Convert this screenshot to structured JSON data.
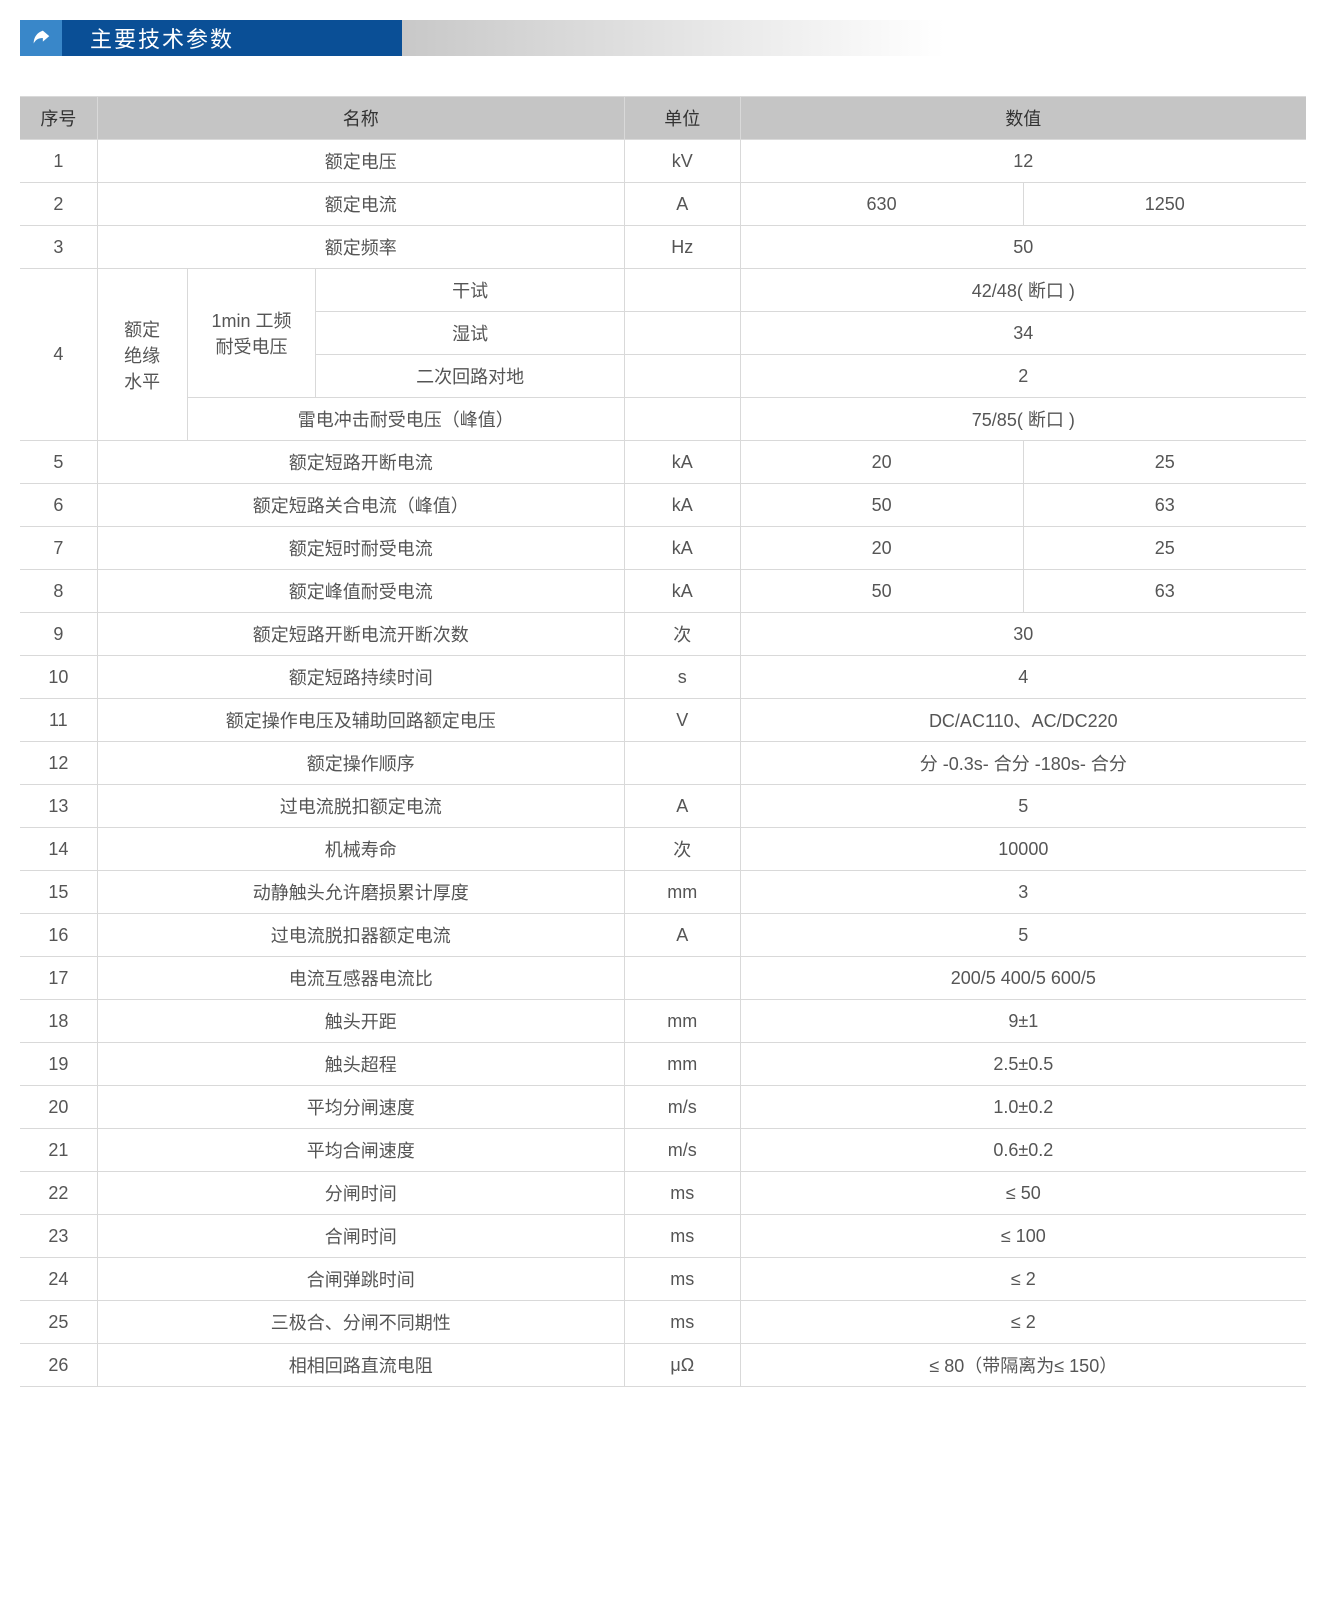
{
  "title": "主要技术参数",
  "colors": {
    "header_icon_bg": "#3987c9",
    "header_title_bg": "#0a4f96",
    "header_title_fg": "#ffffff",
    "table_header_bg": "#c5c5c5",
    "border": "#d9d9d9",
    "text": "#555555"
  },
  "columns": {
    "idx": "序号",
    "name": "名称",
    "unit": "单位",
    "value": "数值"
  },
  "row4": {
    "idx": "4",
    "group": "额定\n绝缘\n水平",
    "sub1": "1min 工频\n耐受电压",
    "r1": {
      "name": "干试",
      "unit": "",
      "value": "42/48( 断口 )"
    },
    "r2": {
      "name": "湿试",
      "unit": "",
      "value": "34"
    },
    "r3": {
      "name": "二次回路对地",
      "unit": "",
      "value": "2"
    },
    "r4": {
      "name": "雷电冲击耐受电压（峰值）",
      "unit": "",
      "value": "75/85( 断口 )"
    }
  },
  "rows": [
    {
      "idx": "1",
      "name": "额定电压",
      "unit": "kV",
      "values": [
        "12"
      ]
    },
    {
      "idx": "2",
      "name": "额定电流",
      "unit": "A",
      "values": [
        "630",
        "1250"
      ]
    },
    {
      "idx": "3",
      "name": "额定频率",
      "unit": "Hz",
      "values": [
        "50"
      ]
    },
    {
      "idx": "5",
      "name": "额定短路开断电流",
      "unit": "kA",
      "values": [
        "20",
        "25"
      ]
    },
    {
      "idx": "6",
      "name": "额定短路关合电流（峰值）",
      "unit": "kA",
      "values": [
        "50",
        "63"
      ]
    },
    {
      "idx": "7",
      "name": "额定短时耐受电流",
      "unit": "kA",
      "values": [
        "20",
        "25"
      ]
    },
    {
      "idx": "8",
      "name": "额定峰值耐受电流",
      "unit": "kA",
      "values": [
        "50",
        "63"
      ]
    },
    {
      "idx": "9",
      "name": "额定短路开断电流开断次数",
      "unit": "次",
      "values": [
        "30"
      ]
    },
    {
      "idx": "10",
      "name": "额定短路持续时间",
      "unit": "s",
      "values": [
        "4"
      ]
    },
    {
      "idx": "11",
      "name": "额定操作电压及辅助回路额定电压",
      "unit": "V",
      "values": [
        "DC/AC110、AC/DC220"
      ]
    },
    {
      "idx": "12",
      "name": "额定操作顺序",
      "unit": "",
      "values": [
        "分 -0.3s- 合分 -180s- 合分"
      ]
    },
    {
      "idx": "13",
      "name": "过电流脱扣额定电流",
      "unit": "A",
      "values": [
        "5"
      ]
    },
    {
      "idx": "14",
      "name": "机械寿命",
      "unit": "次",
      "values": [
        "10000"
      ]
    },
    {
      "idx": "15",
      "name": "动静触头允许磨损累计厚度",
      "unit": "mm",
      "values": [
        "3"
      ]
    },
    {
      "idx": "16",
      "name": "过电流脱扣器额定电流",
      "unit": "A",
      "values": [
        "5"
      ]
    },
    {
      "idx": "17",
      "name": "电流互感器电流比",
      "unit": "",
      "values": [
        "200/5 400/5 600/5"
      ]
    },
    {
      "idx": "18",
      "name": "触头开距",
      "unit": "mm",
      "values": [
        "9±1"
      ]
    },
    {
      "idx": "19",
      "name": "触头超程",
      "unit": "mm",
      "values": [
        "2.5±0.5"
      ]
    },
    {
      "idx": "20",
      "name": "平均分闸速度",
      "unit": "m/s",
      "values": [
        "1.0±0.2"
      ]
    },
    {
      "idx": "21",
      "name": "平均合闸速度",
      "unit": "m/s",
      "values": [
        "0.6±0.2"
      ]
    },
    {
      "idx": "22",
      "name": "分闸时间",
      "unit": "ms",
      "values": [
        "≤ 50"
      ]
    },
    {
      "idx": "23",
      "name": "合闸时间",
      "unit": "ms",
      "values": [
        "≤ 100"
      ]
    },
    {
      "idx": "24",
      "name": "合闸弹跳时间",
      "unit": "ms",
      "values": [
        "≤ 2"
      ]
    },
    {
      "idx": "25",
      "name": "三极合、分闸不同期性",
      "unit": "ms",
      "values": [
        "≤ 2"
      ]
    },
    {
      "idx": "26",
      "name": "相相回路直流电阻",
      "unit": "μΩ",
      "values": [
        "≤ 80（带隔离为≤ 150）"
      ]
    }
  ]
}
